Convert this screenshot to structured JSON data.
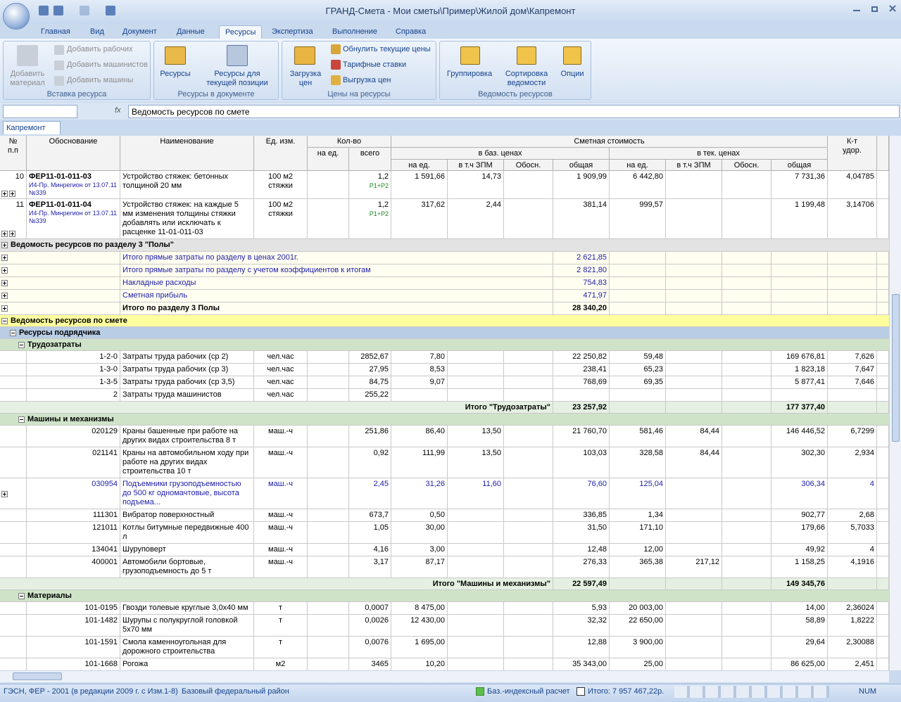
{
  "window": {
    "title": "ГРАНД-Смета - Мои сметы\\Пример\\Жилой дом\\Капремонт"
  },
  "ribbon": {
    "tabs": [
      "Главная",
      "Вид",
      "Документ",
      "Данные",
      "Ресурсы",
      "Экспертиза",
      "Выполнение",
      "Справка"
    ],
    "active_tab": 4,
    "groups": [
      {
        "label": "Вставка ресурса",
        "buttons": [
          "Добавить материал",
          "Добавить рабочих",
          "Добавить машинистов",
          "Добавить машины"
        ]
      },
      {
        "label": "Ресурсы в документе",
        "buttons": [
          "Ресурсы",
          "Ресурсы для текущей позиции"
        ]
      },
      {
        "label": "Цены на ресурсы",
        "buttons": [
          "Загрузка цен",
          "Обнулить текущие цены",
          "Тарифные ставки",
          "Выгрузка цен"
        ]
      },
      {
        "label": "Ведомость ресурсов",
        "buttons": [
          "Группировка",
          "Сортировка ведомости",
          "Опции"
        ]
      }
    ]
  },
  "formula_bar": {
    "function_label": "fx",
    "text": "Ведомость ресурсов по смете"
  },
  "document_tab": "Капремонт",
  "table": {
    "columns": {
      "number": "№ п.п",
      "code": "Обоснование",
      "name": "Наименование",
      "unit": "Ед. изм.",
      "quantity": "Кол-во",
      "qty_per_unit": "на ед.",
      "qty_total": "всего",
      "cost": "Сметная стоимость",
      "base": "в баз. ценах",
      "current": "в тек. ценах",
      "price_headers": [
        "на ед.",
        "в т.ч ЗПМ",
        "Обосн.",
        "общая"
      ],
      "coef": "К-т удор."
    },
    "positions": [
      {
        "num": "10",
        "code": "ФЕР11-01-011-03",
        "source": "И4-Пр. Минрегион от 13.07.11 №339",
        "name": "Устройство стяжек: бетонных толщиной 20 мм",
        "unit": "100 м2 стяжки",
        "qty_total": "1,2",
        "formula": "Р1+Р2",
        "base_unit": "1 591,66",
        "base_zpm": "14,73",
        "base_total": "1 909,99",
        "cur_unit": "6 442,80",
        "cur_total": "7 731,36",
        "coef": "4,04785"
      },
      {
        "num": "11",
        "code": "ФЕР11-01-011-04",
        "source": "И4-Пр. Минрегион от 13.07.11 №339",
        "name": "Устройство стяжек: на каждые 5 мм изменения толщины стяжки добавлять или исключать к расценке 11-01-011-03",
        "unit": "100 м2 стяжки",
        "qty_total": "1,2",
        "formula": "Р1+Р2",
        "base_unit": "317,62",
        "base_zpm": "2,44",
        "base_total": "381,14",
        "cur_unit": "999,57",
        "cur_total": "1 199,48",
        "coef": "3,14706"
      }
    ],
    "section": {
      "title": "Ведомость ресурсов по разделу 3 \"Полы\"",
      "rows": [
        {
          "label": "Итого прямые затраты по разделу в ценах 2001г.",
          "value": "2 621,85"
        },
        {
          "label": "Итого прямые затраты по разделу с учетом коэффициентов к итогам",
          "value": "2 821,80"
        },
        {
          "label": "Накладные расходы",
          "value": "754,83"
        },
        {
          "label": "Сметная прибыль",
          "value": "471,97"
        }
      ],
      "total": {
        "label": "Итого по разделу 3 Полы",
        "value": "28 340,20"
      }
    },
    "resource_sheet": {
      "title": "Ведомость ресурсов по смете",
      "group": "Ресурсы подрядчика",
      "subgroups": [
        {
          "title": "Трудозатраты",
          "rows": [
            [
              "1-2-0",
              "Затраты труда рабочих (ср 2)",
              "чел.час",
              null,
              "2852,67",
              "7,80",
              null,
              null,
              "22 250,82",
              "59,48",
              null,
              null,
              "169 676,81",
              "7,626"
            ],
            [
              "1-3-0",
              "Затраты труда рабочих (ср 3)",
              "чел.час",
              null,
              "27,95",
              "8,53",
              null,
              null,
              "238,41",
              "65,23",
              null,
              null,
              "1 823,18",
              "7,647"
            ],
            [
              "1-3-5",
              "Затраты труда рабочих (ср 3,5)",
              "чел.час",
              null,
              "84,75",
              "9,07",
              null,
              null,
              "768,69",
              "69,35",
              null,
              null,
              "5 877,41",
              "7,646"
            ],
            [
              "2",
              "Затраты труда машинистов",
              "чел.час",
              null,
              "255,22",
              null,
              null,
              null,
              null,
              null,
              null,
              null,
              null,
              null
            ]
          ],
          "total": {
            "label": "Итого \"Трудозатраты\"",
            "base_total": "23 257,92",
            "current_total": "177 377,40"
          }
        },
        {
          "title": "Машины и механизмы",
          "linked_row": 2,
          "linked_color": "#1c1ca8",
          "rows": [
            [
              "020129",
              "Краны башенные при работе на других видах строительства 8 т",
              "маш.-ч",
              null,
              "251,86",
              "86,40",
              "13,50",
              null,
              "21 760,70",
              "581,46",
              "84,44",
              null,
              "146 446,52",
              "6,7299"
            ],
            [
              "021141",
              "Краны на автомобильном ходу при работе на других видах строительства 10 т",
              "маш.-ч",
              null,
              "0,92",
              "111,99",
              "13,50",
              null,
              "103,03",
              "328,58",
              "84,44",
              null,
              "302,30",
              "2,934"
            ],
            [
              "030954",
              "Подъемники грузоподъемностью до 500 кг одномачтовые, высота подъема...",
              "маш.-ч",
              null,
              "2,45",
              "31,26",
              "11,60",
              null,
              "76,60",
              "125,04",
              null,
              null,
              "306,34",
              "4"
            ],
            [
              "111301",
              "Вибратор поверхностный",
              "маш.-ч",
              null,
              "673,7",
              "0,50",
              null,
              null,
              "336,85",
              "1,34",
              null,
              null,
              "902,77",
              "2,68"
            ],
            [
              "121011",
              "Котлы битумные передвижные 400 л",
              "маш.-ч",
              null,
              "1,05",
              "30,00",
              null,
              null,
              "31,50",
              "171,10",
              null,
              null,
              "179,66",
              "5,7033"
            ],
            [
              "134041",
              "Шуруповерт",
              "маш.-ч",
              null,
              "4,16",
              "3,00",
              null,
              null,
              "12,48",
              "12,00",
              null,
              null,
              "49,92",
              "4"
            ],
            [
              "400001",
              "Автомобили бортовые, грузоподъемность до 5 т",
              "маш.-ч",
              null,
              "3,17",
              "87,17",
              null,
              null,
              "276,33",
              "365,38",
              "217,12",
              null,
              "1 158,25",
              "4,1916"
            ]
          ],
          "total": {
            "label": "Итого \"Машины и механизмы\"",
            "base_total": "22 597,49",
            "current_total": "149 345,76"
          }
        },
        {
          "title": "Материалы",
          "rows": [
            [
              "101-0195",
              "Гвозди толевые круглые 3,0х40 мм",
              "т",
              null,
              "0,0007",
              "8 475,00",
              null,
              null,
              "5,93",
              "20 003,00",
              null,
              null,
              "14,00",
              "2,36024"
            ],
            [
              "101-1482",
              "Шурупы с полукруглой головкой 5х70 мм",
              "т",
              null,
              "0,0026",
              "12 430,00",
              null,
              null,
              "32,32",
              "22 650,00",
              null,
              null,
              "58,89",
              "1,8222"
            ],
            [
              "101-1591",
              "Смола каменноугольная для дорожного строительства",
              "т",
              null,
              "0,0076",
              "1 695,00",
              null,
              null,
              "12,88",
              "3 900,00",
              null,
              null,
              "29,64",
              "2,30088"
            ],
            [
              "101-1668",
              "Рогожа",
              "м2",
              null,
              "3465",
              "10,20",
              null,
              null,
              "35 343,00",
              "25,00",
              null,
              null,
              "86 625,00",
              "2,451"
            ]
          ]
        }
      ]
    }
  },
  "status_bar": {
    "norms": "ГЭСН, ФЕР - 2001 (в редакции 2009 г. с Изм.1-8)",
    "region": "Базовый федеральный район",
    "calc_method": "Баз.-индексный расчет",
    "total": "Итого: 7 957 467,22р.",
    "num_lock": "NUM"
  }
}
